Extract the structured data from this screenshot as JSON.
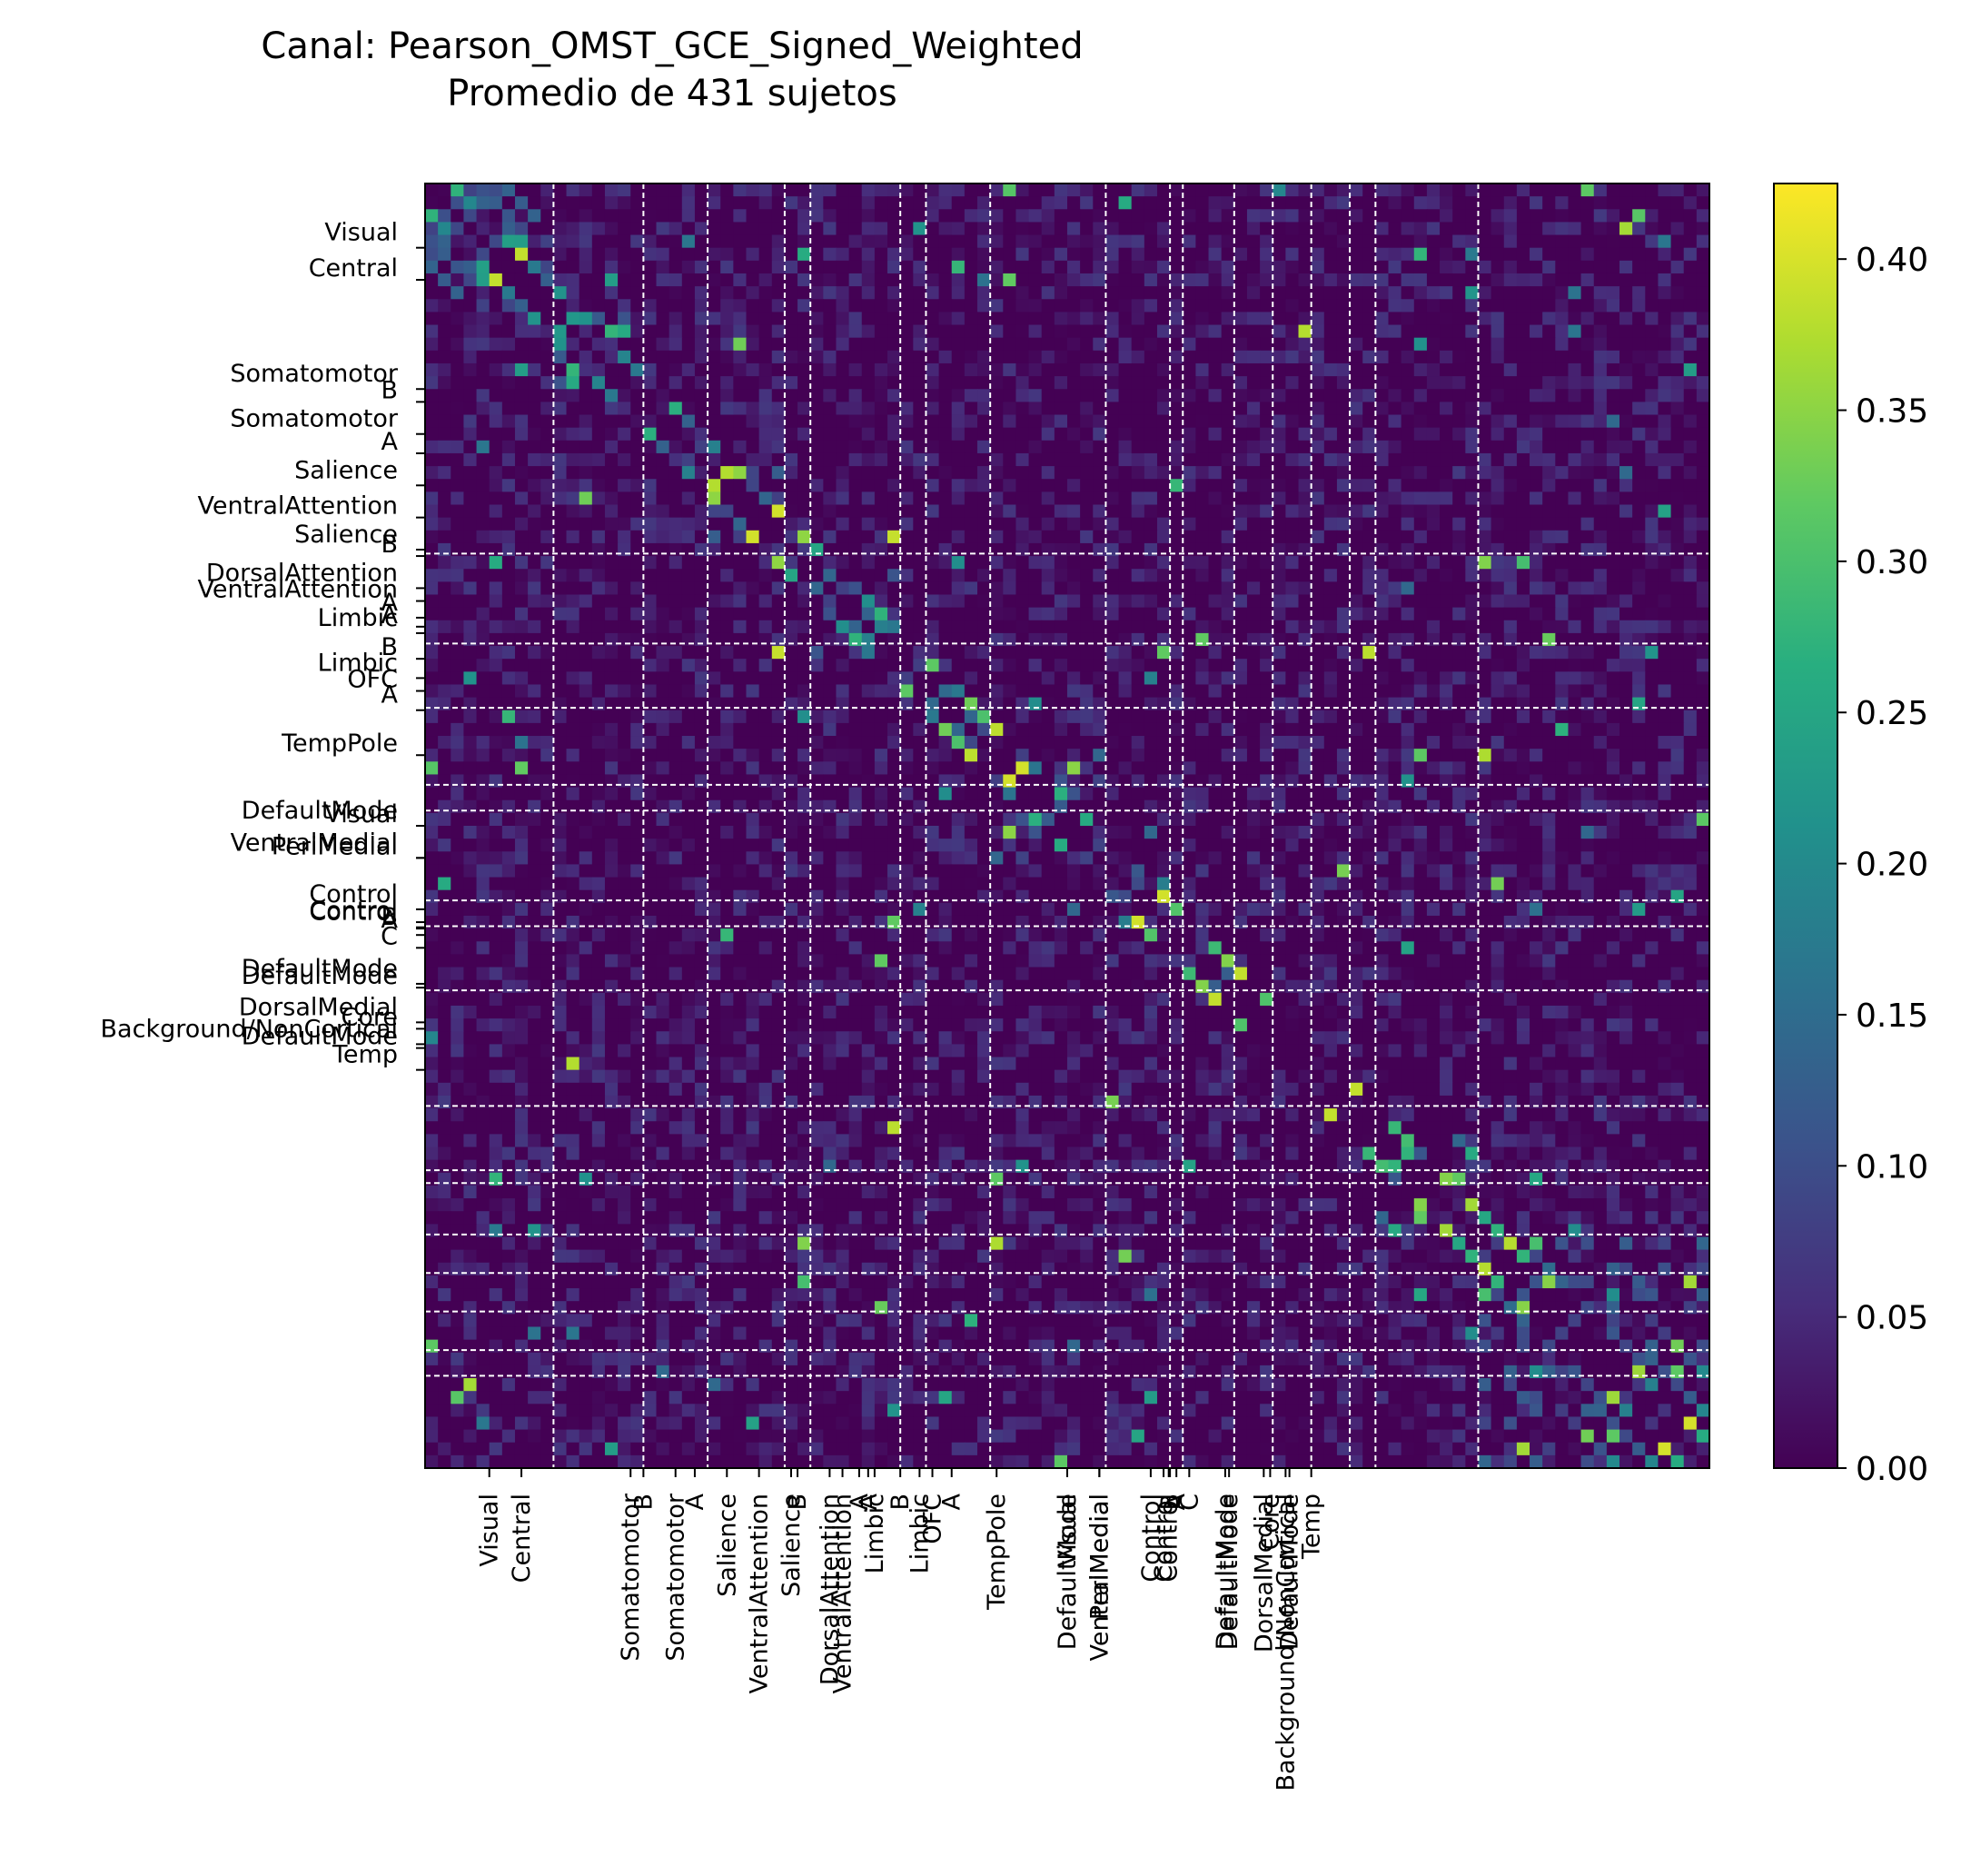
{
  "chart_data": {
    "type": "heatmap",
    "title": "Canal: Pearson_OMST_GCE_Signed_Weighted",
    "subtitle": "Promedio de 431 sujetos",
    "n_cells": 100,
    "colormap": "viridis",
    "vmin": 0.0,
    "vmax": 0.425,
    "colorbar_ticks": [
      0.0,
      0.05,
      0.1,
      0.15,
      0.2,
      0.25,
      0.3,
      0.35,
      0.4
    ],
    "colorbar_tick_labels": [
      "0.00",
      "0.05",
      "0.10",
      "0.15",
      "0.20",
      "0.25",
      "0.30",
      "0.35",
      "0.40"
    ],
    "boundaries": [
      10,
      17,
      22,
      28,
      30,
      37,
      39,
      44,
      53,
      58,
      59,
      63,
      66,
      69,
      72,
      74,
      82
    ],
    "network_labels": [
      {
        "label": "Visual",
        "pos": 5.0
      },
      {
        "label": "Central",
        "pos": 7.5
      },
      {
        "label": "Somatomotor",
        "pos": 16.0
      },
      {
        "label": "B",
        "pos": 17.0
      },
      {
        "label": "Somatomotor",
        "pos": 19.5
      },
      {
        "label": "A",
        "pos": 21.0
      },
      {
        "label": "Salience",
        "pos": 23.5
      },
      {
        "label": "VentralAttention",
        "pos": 26.0
      },
      {
        "label": "Salience",
        "pos": 28.5
      },
      {
        "label": "B",
        "pos": 29.0
      },
      {
        "label": "DorsalAttention",
        "pos": 31.5
      },
      {
        "label": "VentralAttention",
        "pos": 32.5
      },
      {
        "label": "A",
        "pos": 33.8
      },
      {
        "label": "A",
        "pos": 34.5
      },
      {
        "label": "Limbic",
        "pos": 35.0
      },
      {
        "label": "B",
        "pos": 37.0
      },
      {
        "label": "Limbic",
        "pos": 38.5
      },
      {
        "label": "OFC",
        "pos": 39.5
      },
      {
        "label": "A",
        "pos": 41.0
      },
      {
        "label": "TempPole",
        "pos": 44.5
      },
      {
        "label": "DefaultMode",
        "pos": 50.0
      },
      {
        "label": "Visual",
        "pos": 50.0
      },
      {
        "label": "VentralMedial",
        "pos": 52.5
      },
      {
        "label": "PeriMedial",
        "pos": 52.5
      },
      {
        "label": "Control",
        "pos": 56.5
      },
      {
        "label": "Control",
        "pos": 57.5
      },
      {
        "label": "Control",
        "pos": 57.9
      },
      {
        "label": "B",
        "pos": 58.0
      },
      {
        "label": "A",
        "pos": 58.5
      },
      {
        "label": "C",
        "pos": 59.5
      },
      {
        "label": "DefaultMode",
        "pos": 62.3
      },
      {
        "label": "DefaultMode",
        "pos": 62.6
      },
      {
        "label": "DorsalMedial",
        "pos": 65.3
      },
      {
        "label": "Core",
        "pos": 65.8
      },
      {
        "label": "Background/NonCortical",
        "pos": 67.0
      },
      {
        "label": "DefaultMode",
        "pos": 67.3
      },
      {
        "label": "Temp",
        "pos": 69.0
      }
    ]
  }
}
